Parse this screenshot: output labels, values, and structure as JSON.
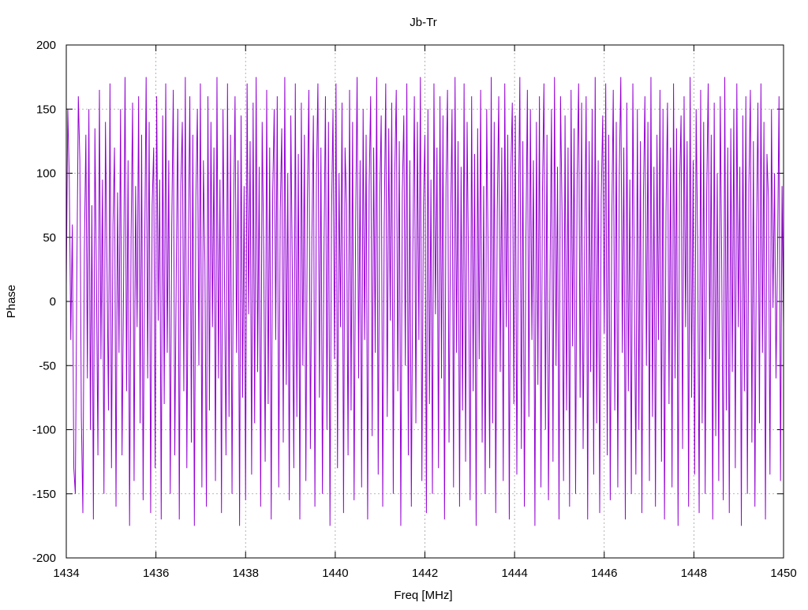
{
  "chart_data": {
    "type": "line",
    "title": "Jb-Tr",
    "xlabel": "Freq [MHz]",
    "ylabel": "Phase",
    "xlim": [
      1434,
      1450
    ],
    "ylim": [
      -200,
      200
    ],
    "xticks": [
      1434,
      1436,
      1438,
      1440,
      1442,
      1444,
      1446,
      1448,
      1450
    ],
    "yticks": [
      -200,
      -150,
      -100,
      -50,
      0,
      50,
      100,
      150,
      200
    ],
    "grid": true,
    "legend": "none",
    "series": [
      {
        "color": "#9400d3",
        "x_start": 1434,
        "x_end": 1450,
        "values": [
          12,
          150,
          95,
          -30,
          60,
          -130,
          -150,
          20,
          160,
          110,
          -90,
          -165,
          40,
          130,
          -60,
          150,
          -100,
          75,
          -170,
          135,
          20,
          -120,
          165,
          -45,
          95,
          -150,
          140,
          30,
          -85,
          170,
          -130,
          60,
          120,
          -160,
          85,
          -40,
          150,
          -120,
          10,
          175,
          -70,
          110,
          -175,
          50,
          155,
          -140,
          90,
          -20,
          160,
          -95,
          130,
          -155,
          35,
          175,
          -60,
          140,
          -165,
          75,
          120,
          -130,
          160,
          -15,
          95,
          -170,
          145,
          -80,
          170,
          -40,
          110,
          -150,
          60,
          165,
          -120,
          25,
          150,
          -170,
          90,
          140,
          -70,
          175,
          -130,
          45,
          160,
          -110,
          130,
          -175,
          80,
          150,
          -50,
          170,
          -145,
          110,
          30,
          -160,
          160,
          -85,
          140,
          -20,
          120,
          -140,
          175,
          -60,
          95,
          -165,
          150,
          15,
          -120,
          170,
          -90,
          130,
          -150,
          65,
          160,
          -40,
          110,
          -175,
          145,
          -75,
          90,
          -155,
          170,
          -10,
          125,
          -135,
          155,
          -95,
          175,
          -55,
          105,
          -160,
          140,
          40,
          -125,
          165,
          -80,
          120,
          -170,
          85,
          150,
          -30,
          160,
          -145,
          70,
          135,
          -110,
          175,
          -65,
          100,
          -155,
          145,
          25,
          -130,
          170,
          -90,
          115,
          -170,
          155,
          -50,
          130,
          -140,
          80,
          165,
          -115,
          50,
          145,
          -160,
          95,
          170,
          -75,
          120,
          -150,
          35,
          160,
          -100,
          140,
          -175,
          65,
          150,
          -45,
          170,
          -130,
          100,
          -20,
          155,
          -165,
          120,
          75,
          -120,
          165,
          -85,
          140,
          -155,
          55,
          175,
          -60,
          110,
          -145,
          150,
          -30,
          130,
          -170,
          90,
          160,
          -105,
          120,
          -40,
          175,
          -135,
          80,
          145,
          -160,
          60,
          170,
          -90,
          135,
          -15,
          155,
          -150,
          100,
          165,
          -70,
          125,
          -175,
          85,
          145,
          -50,
          170,
          -120,
          110,
          -160,
          40,
          160,
          -95,
          140,
          -30,
          175,
          -140,
          75,
          130,
          -165,
          150,
          -80,
          95,
          -150,
          170,
          -10,
          120,
          -130,
          160,
          -60,
          145,
          -170,
          90,
          165,
          -110,
          55,
          150,
          -145,
          175,
          -40,
          125,
          -160,
          105,
          -85,
          170,
          -125,
          140,
          20,
          -155,
          160,
          -70,
          115,
          -175,
          135,
          -45,
          165,
          -110,
          90,
          -150,
          150,
          30,
          -130,
          175,
          -95,
          140,
          -165,
          70,
          160,
          -55,
          120,
          -140,
          170,
          -20,
          130,
          -170,
          100,
          155,
          -80,
          145,
          -135,
          60,
          175,
          -115,
          125,
          -160,
          45,
          165,
          -90,
          150,
          -30,
          110,
          -175,
          140,
          -65,
          160,
          -145,
          85,
          170,
          -100,
          130,
          -155,
          15,
          150,
          -125,
          175,
          -50,
          105,
          -170,
          160,
          70,
          -140,
          145,
          -85,
          120,
          -160,
          165,
          -35,
          135,
          -150,
          95,
          170,
          -75,
          155,
          -115,
          40,
          160,
          -170,
          125,
          -55,
          150,
          -135,
          175,
          -95,
          110,
          -165,
          80,
          145,
          -25,
          170,
          -120,
          130,
          -155,
          60,
          165,
          -85,
          140,
          -145,
          100,
          175,
          -40,
          120,
          -170,
          155,
          -70,
          95,
          -150,
          170,
          10,
          -135,
          150,
          -100,
          125,
          -165,
          80,
          160,
          -50,
          140,
          -140,
          175,
          -90,
          105,
          -160,
          130,
          -30,
          165,
          -125,
          150,
          -170,
          70,
          155,
          -80,
          120,
          -145,
          170,
          -60,
          135,
          -175,
          90,
          145,
          -115,
          160,
          -20,
          125,
          -160,
          175,
          -75,
          110,
          -135,
          150,
          45,
          -165,
          165,
          -95,
          140,
          -150,
          85,
          170,
          -45,
          130,
          -170,
          155,
          -105,
          100,
          -140,
          160,
          25,
          -155,
          175,
          -85,
          120,
          -165,
          135,
          -55,
          150,
          -130,
          170,
          -20,
          105,
          -175,
          145,
          -70,
          160,
          -150,
          90,
          165,
          -110,
          125,
          -160,
          50,
          155,
          -95,
          170,
          -40,
          140,
          -170,
          115,
          80,
          -135,
          150,
          -5,
          100,
          -60,
          35,
          160,
          -140,
          90,
          -20
        ]
      }
    ]
  }
}
